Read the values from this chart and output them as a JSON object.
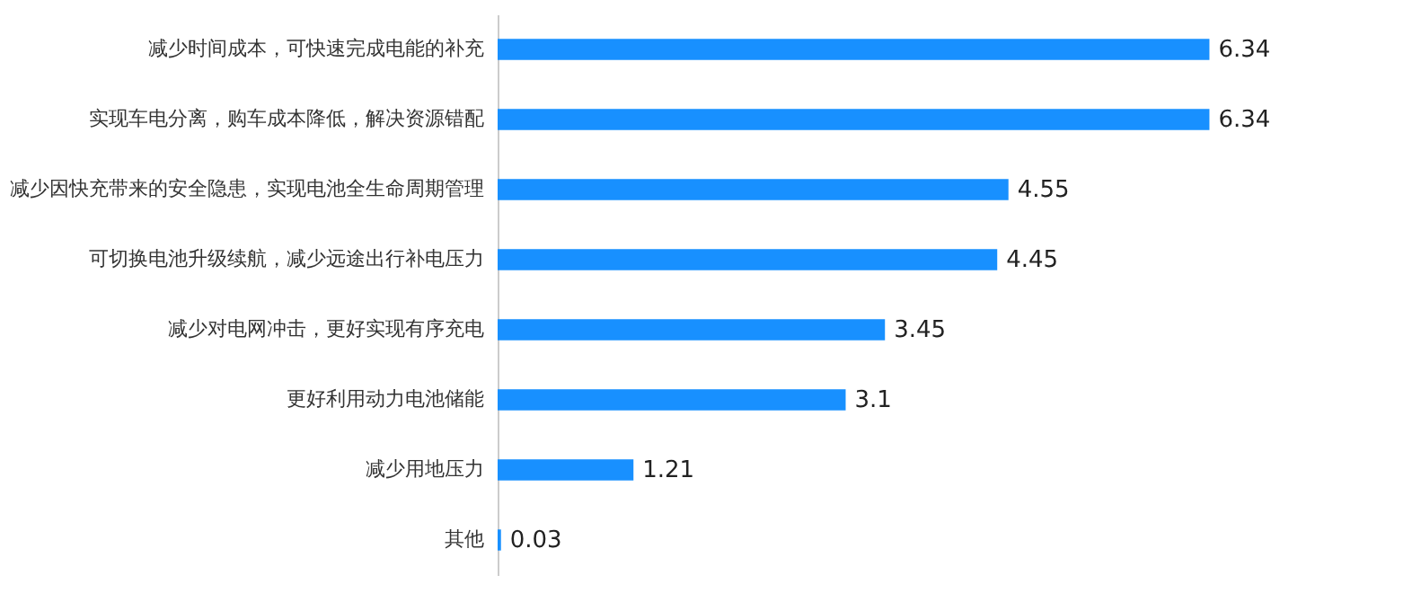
{
  "chart_data": {
    "type": "bar",
    "orientation": "horizontal",
    "data_labels": true,
    "color": "#1890ff",
    "categories": [
      "减少时间成本，可快速完成电能的补充",
      "实现车电分离，购车成本降低，解决资源错配",
      "减少因快充带来的安全隐患，实现电池全生命周期管理",
      "可切换电池升级续航，减少远途出行补电压力",
      "减少对电网冲击，更好实现有序充电",
      "更好利用动力电池储能",
      "减少用地压力",
      "其他"
    ],
    "values": [
      6.34,
      6.34,
      4.55,
      4.45,
      3.45,
      3.1,
      1.21,
      0.03
    ]
  }
}
